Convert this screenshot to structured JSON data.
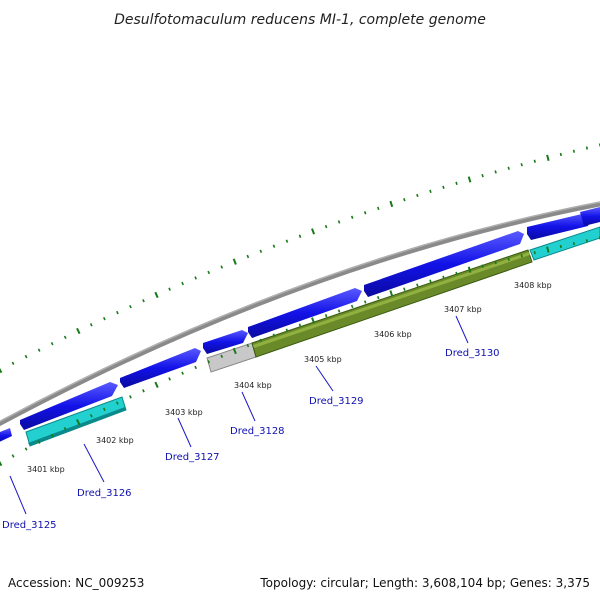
{
  "title": "Desulfotomaculum reducens MI-1, complete genome",
  "footer": {
    "accession": "Accession: NC_009253",
    "summary": "Topology: circular; Length: 3,608,104 bp; Genes: 3,375"
  },
  "tick_labels": [
    "3401 kbp",
    "3402 kbp",
    "3403 kbp",
    "3404 kbp",
    "3405 kbp",
    "3406 kbp",
    "3407 kbp",
    "3408 kbp"
  ],
  "gene_labels": [
    "Dred_3125",
    "Dred_3126",
    "Dred_3127",
    "Dred_3128",
    "Dred_3129",
    "Dred_3130"
  ],
  "colors": {
    "backbone": "#8a8a8a",
    "cds_forward": "#1212e8",
    "rna_cyan": "#22d0d0",
    "pseudo_gray": "#c8c8c8",
    "olive": "#6a8a2a",
    "tick_green": "#1a7a1a",
    "leader_blue": "#1a1ac8"
  }
}
